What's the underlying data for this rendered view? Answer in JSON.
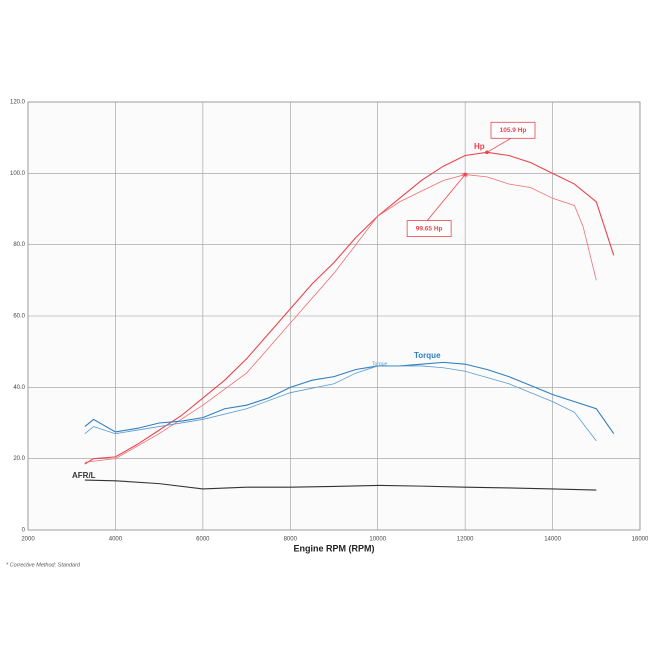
{
  "chart_data": {
    "type": "line",
    "x_label": "Engine RPM (RPM)",
    "footnote": "* Corrective Method: Standard",
    "xlim": [
      2000,
      16000
    ],
    "xticks": [
      2000,
      4000,
      6000,
      8000,
      10000,
      12000,
      14000,
      16000
    ],
    "ylim": [
      0,
      120
    ],
    "yticks": [
      0,
      {
        "value": 20,
        "label": "20.0"
      },
      {
        "value": 40,
        "label": "40.0"
      },
      {
        "value": 60,
        "label": "60.0"
      },
      {
        "value": 80,
        "label": "80.0"
      },
      {
        "value": 100,
        "label": "100.0"
      },
      {
        "value": 120,
        "label": "120.0"
      }
    ],
    "grid": true,
    "series": [
      {
        "name": "Hp",
        "color": "#e8454d",
        "x": [
          3300,
          3500,
          4000,
          4500,
          5000,
          5500,
          6000,
          6500,
          7000,
          7500,
          8000,
          8500,
          9000,
          9500,
          10000,
          10500,
          11000,
          11500,
          12000,
          12500,
          13000,
          13500,
          14000,
          14500,
          15000,
          15400
        ],
        "values": [
          18.5,
          20,
          20.5,
          24,
          28,
          32,
          37,
          42,
          48,
          55,
          62,
          69,
          75,
          82,
          88,
          93,
          98,
          102,
          105,
          105.9,
          105,
          103,
          100,
          97,
          92,
          77
        ]
      },
      {
        "name": "Hp",
        "color": "#ef6f75",
        "x": [
          3300,
          4000,
          5000,
          6000,
          7000,
          8000,
          9000,
          9500,
          10000,
          10500,
          11000,
          11500,
          12000,
          12500,
          13000,
          13500,
          14000,
          14500,
          14700,
          15000
        ],
        "values": [
          19,
          20,
          27,
          35,
          44,
          58,
          72,
          80,
          88,
          92,
          95,
          98,
          99.65,
          99,
          97,
          96,
          93,
          91,
          85,
          70
        ]
      },
      {
        "name": "Torque",
        "color": "#2f7fc0",
        "x": [
          3300,
          3500,
          4000,
          4500,
          5000,
          5500,
          6000,
          6500,
          7000,
          7500,
          8000,
          8500,
          9000,
          9500,
          10000,
          10500,
          11000,
          11500,
          12000,
          12500,
          13000,
          13500,
          14000,
          14500,
          15000,
          15400
        ],
        "values": [
          29,
          31,
          27.5,
          28.5,
          30,
          30.5,
          31.5,
          34,
          35,
          37,
          40,
          42,
          43,
          45,
          46,
          46,
          46.5,
          47,
          46.5,
          45,
          43,
          40.5,
          38,
          36,
          34,
          27
        ]
      },
      {
        "name": "Torque",
        "color": "#5a9bd0",
        "x": [
          3300,
          3500,
          4000,
          5000,
          6000,
          7000,
          8000,
          9000,
          9500,
          10000,
          11000,
          11500,
          12000,
          13000,
          14000,
          14500,
          15000
        ],
        "values": [
          27,
          29,
          27,
          29,
          31,
          34,
          38.5,
          41,
          44,
          46,
          46,
          45.5,
          44.5,
          41,
          36,
          33,
          25
        ]
      },
      {
        "name": "AFR/L",
        "color": "#333333",
        "x": [
          3300,
          4000,
          5000,
          6000,
          7000,
          8000,
          9000,
          10000,
          11000,
          12000,
          13000,
          14000,
          15000
        ],
        "values": [
          14,
          13.8,
          13,
          11.5,
          12,
          12,
          12.2,
          12.5,
          12.3,
          12,
          11.8,
          11.5,
          11.2
        ]
      }
    ],
    "annotations": [
      {
        "text": "105.9 Hp",
        "x": 12500,
        "y": 105.9,
        "color": "#e8454d"
      },
      {
        "text": "99.65 Hp",
        "x": 12000,
        "y": 99.65,
        "color": "#e8454d"
      }
    ]
  }
}
